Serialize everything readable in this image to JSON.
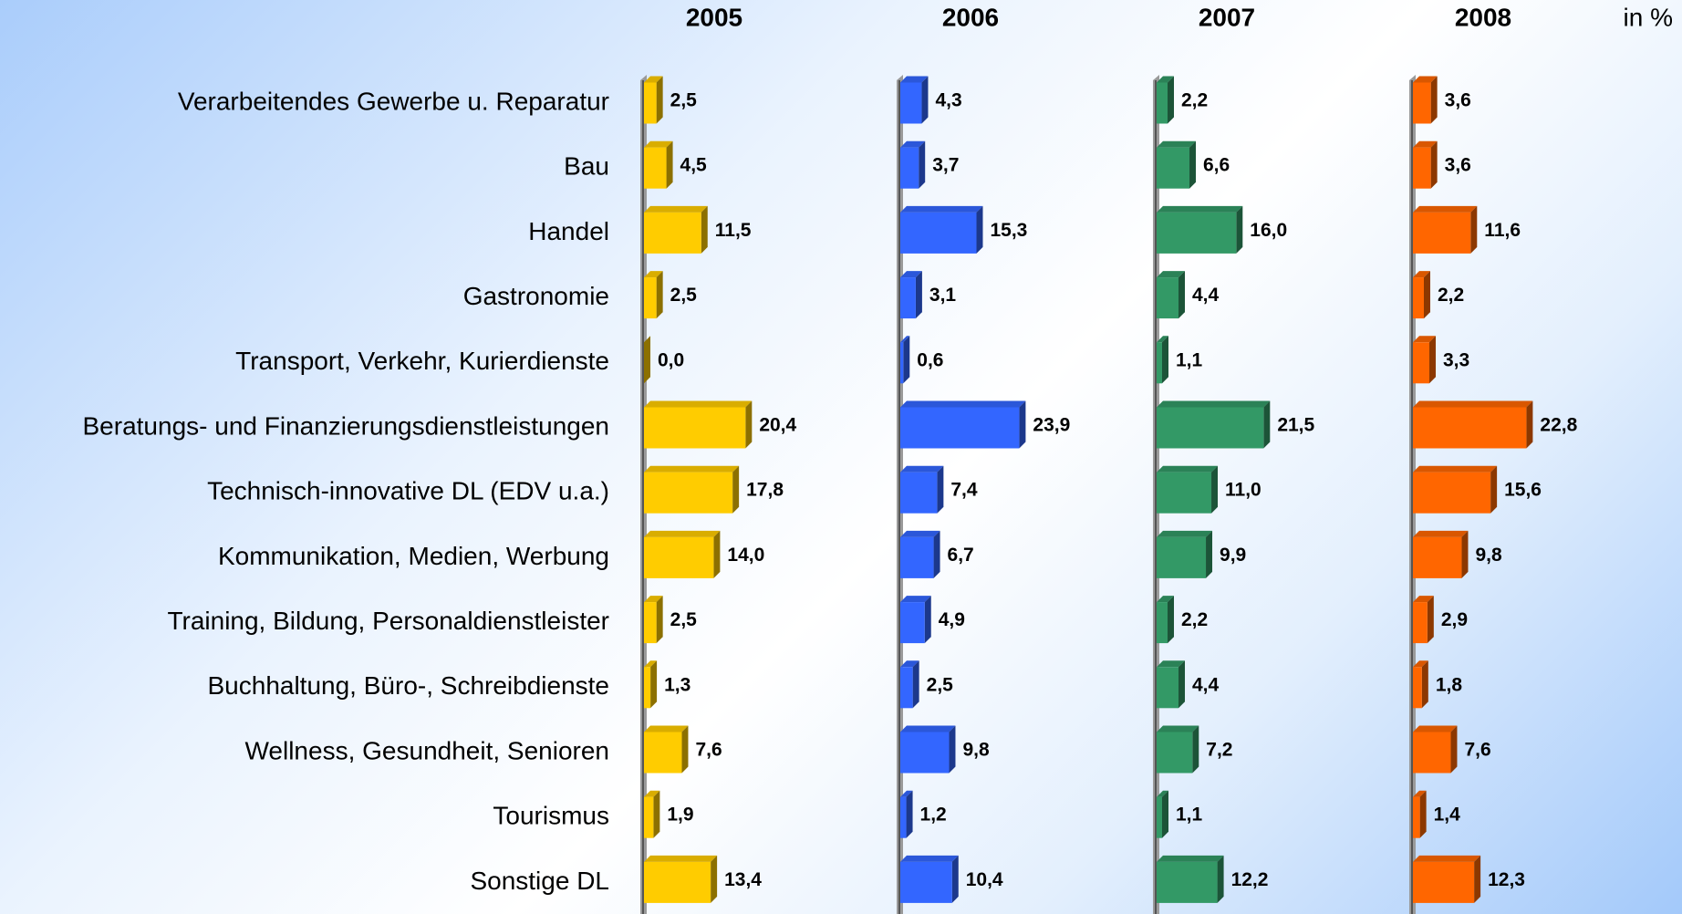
{
  "chart_data": {
    "type": "bar",
    "orientation": "horizontal",
    "unit_label": "in %",
    "categories": [
      "Verarbeitendes Gewerbe u. Reparatur",
      "Bau",
      "Handel",
      "Gastronomie",
      "Transport, Verkehr, Kurierdienste",
      "Beratungs- und Finanzierungsdienstleistungen",
      "Technisch-innovative DL (EDV u.a.)",
      "Kommunikation, Medien, Werbung",
      "Training, Bildung, Personaldienstleister",
      "Buchhaltung, Büro-, Schreibdienste",
      "Wellness, Gesundheit, Senioren",
      "Tourismus",
      "Sonstige DL"
    ],
    "xlim": [
      0,
      25
    ],
    "series": [
      {
        "name": "2005",
        "color": "#ffcc00",
        "values": [
          2.5,
          4.5,
          11.5,
          2.5,
          0.0,
          20.4,
          17.8,
          14.0,
          2.5,
          1.3,
          7.6,
          1.9,
          13.4
        ],
        "value_labels": [
          "2,5",
          "4,5",
          "11,5",
          "2,5",
          "0,0",
          "20,4",
          "17,8",
          "14,0",
          "2,5",
          "1,3",
          "7,6",
          "1,9",
          "13,4"
        ]
      },
      {
        "name": "2006",
        "color": "#3366ff",
        "values": [
          4.3,
          3.7,
          15.3,
          3.1,
          0.6,
          23.9,
          7.4,
          6.7,
          4.9,
          2.5,
          9.8,
          1.2,
          10.4
        ],
        "value_labels": [
          "4,3",
          "3,7",
          "15,3",
          "3,1",
          "0,6",
          "23,9",
          "7,4",
          "6,7",
          "4,9",
          "2,5",
          "9,8",
          "1,2",
          "10,4"
        ]
      },
      {
        "name": "2007",
        "color": "#339966",
        "values": [
          2.2,
          6.6,
          16.0,
          4.4,
          1.1,
          21.5,
          11.0,
          9.9,
          2.2,
          4.4,
          7.2,
          1.1,
          12.2
        ],
        "value_labels": [
          "2,2",
          "6,6",
          "16,0",
          "4,4",
          "1,1",
          "21,5",
          "11,0",
          "9,9",
          "2,2",
          "4,4",
          "7,2",
          "1,1",
          "12,2"
        ]
      },
      {
        "name": "2008",
        "color": "#ff6600",
        "values": [
          3.6,
          3.6,
          11.6,
          2.2,
          3.3,
          22.8,
          15.6,
          9.8,
          2.9,
          1.8,
          7.6,
          1.4,
          12.3
        ],
        "value_labels": [
          "3,6",
          "3,6",
          "11,6",
          "2,2",
          "3,3",
          "22,8",
          "15,6",
          "9,8",
          "2,9",
          "1,8",
          "7,6",
          "1,4",
          "12,3"
        ]
      }
    ]
  }
}
